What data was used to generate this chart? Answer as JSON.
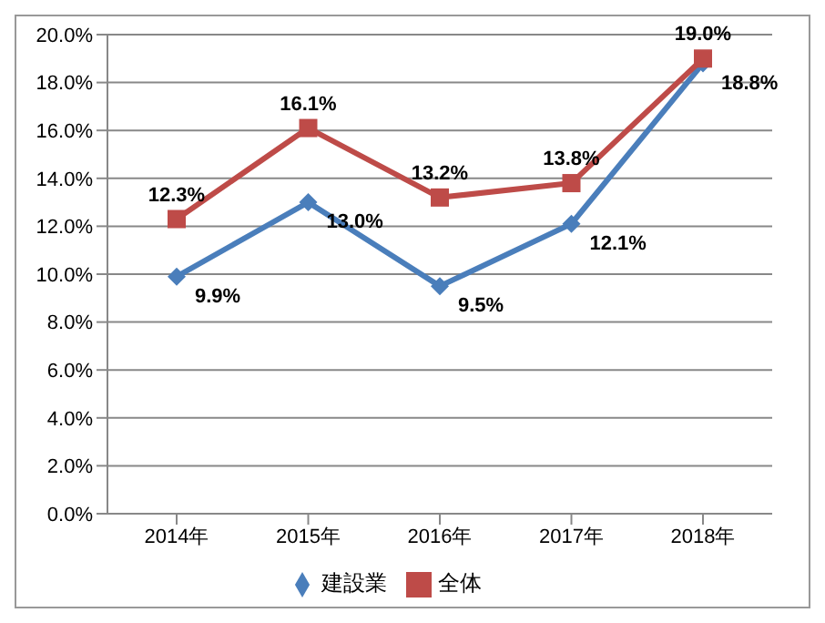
{
  "chart_data": {
    "type": "line",
    "categories": [
      "2014年",
      "2015年",
      "2016年",
      "2017年",
      "2018年"
    ],
    "series": [
      {
        "name": "建設業",
        "color": "#4a7ebb",
        "marker": "diamond",
        "values": [
          9.9,
          13.0,
          9.5,
          12.1,
          18.8
        ],
        "value_labels": [
          "9.9%",
          "13.0%",
          "9.5%",
          "12.1%",
          "18.8%"
        ]
      },
      {
        "name": "全体",
        "color": "#be4b48",
        "marker": "square",
        "values": [
          12.3,
          16.1,
          13.2,
          13.8,
          19.0
        ],
        "value_labels": [
          "12.3%",
          "16.1%",
          "13.2%",
          "13.8%",
          "19.0%"
        ]
      }
    ],
    "ylim": [
      0,
      20
    ],
    "yticks": [
      {
        "value": 0,
        "label": "0.0%"
      },
      {
        "value": 2,
        "label": "2.0%"
      },
      {
        "value": 4,
        "label": "4.0%"
      },
      {
        "value": 6,
        "label": "6.0%"
      },
      {
        "value": 8,
        "label": "8.0%"
      },
      {
        "value": 10,
        "label": "10.0%"
      },
      {
        "value": 12,
        "label": "12.0%"
      },
      {
        "value": 14,
        "label": "14.0%"
      },
      {
        "value": 16,
        "label": "16.0%"
      },
      {
        "value": 18,
        "label": "18.0%"
      },
      {
        "value": 20,
        "label": "20.0%"
      }
    ],
    "grid": "y",
    "legend": "bottom"
  }
}
